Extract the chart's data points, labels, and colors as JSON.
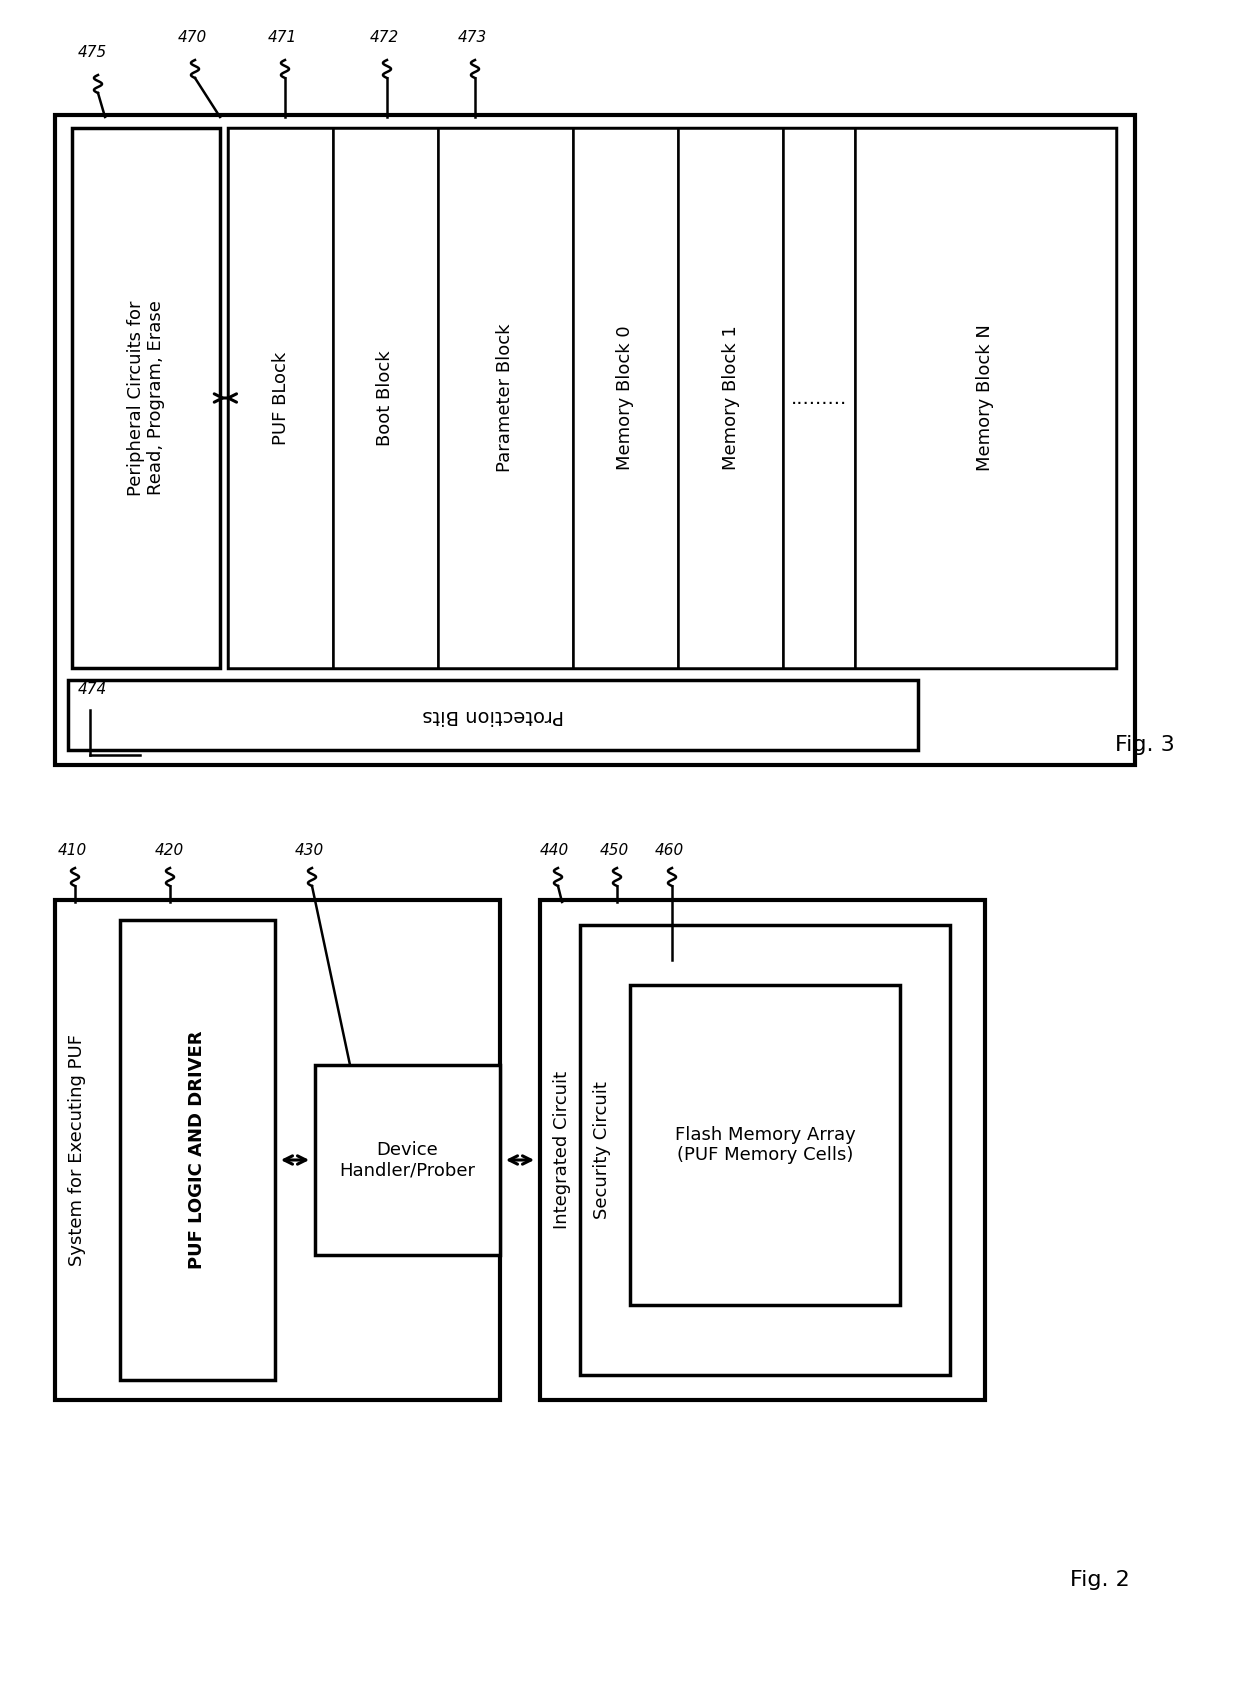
{
  "bg_color": "#ffffff",
  "fig3": {
    "label": "Fig. 3",
    "blocks": [
      "PUF BLock",
      "Boot Block",
      "Parameter Block",
      "Memory Block 0",
      "Memory Block 1",
      ".........",
      "Memory Block N"
    ],
    "protection_text": "Protection Bits",
    "peripheral_text": "Peripheral Circuits for\nRead, Program, Erase"
  },
  "fig2": {
    "label": "Fig. 2",
    "sys_text": "System for Executing PUF",
    "puf_text": "PUF LOGIC AND DRIVER",
    "handler_text": "Device\nHandler/Prober",
    "ic_text": "Integrated Circuit",
    "security_text": "Security Circuit",
    "flash_text": "Flash Memory Array\n(PUF Memory Cells)"
  }
}
